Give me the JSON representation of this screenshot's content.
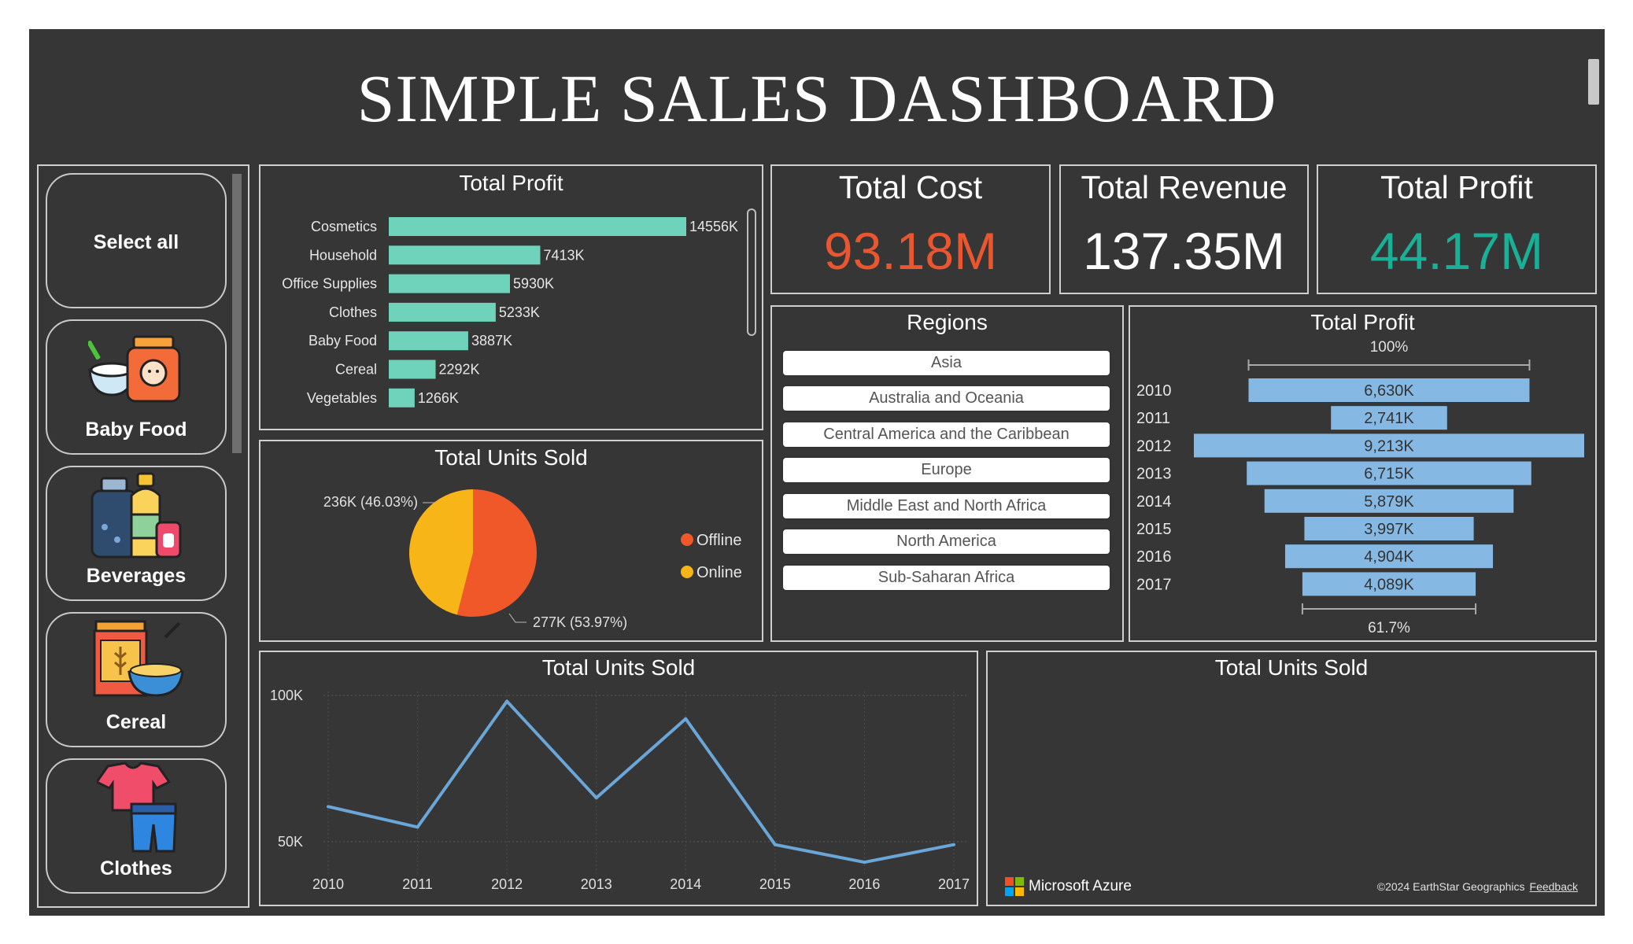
{
  "dashboard": {
    "title": "SIMPLE SALES DASHBOARD"
  },
  "slicer": {
    "items": [
      {
        "label": "Select all",
        "icon": "select-all"
      },
      {
        "label": "Baby Food",
        "icon": "baby-food-icon"
      },
      {
        "label": "Beverages",
        "icon": "beverages-icon"
      },
      {
        "label": "Cereal",
        "icon": "cereal-icon"
      },
      {
        "label": "Clothes",
        "icon": "clothes-icon"
      }
    ]
  },
  "profit_by_item": {
    "title": "Total Profit"
  },
  "units_pie": {
    "title": "Total Units Sold"
  },
  "kpis": {
    "cost": {
      "title": "Total Cost",
      "value": "93.18M",
      "color": "#e8572f"
    },
    "revenue": {
      "title": "Total Revenue",
      "value": "137.35M",
      "color": "#ffffff"
    },
    "profit": {
      "title": "Total Profit",
      "value": "44.17M",
      "color": "#1aaf97"
    }
  },
  "regions": {
    "title": "Regions",
    "items": [
      "Asia",
      "Australia and Oceania",
      "Central America and the Caribbean",
      "Europe",
      "Middle East and North Africa",
      "North America",
      "Sub-Saharan Africa"
    ]
  },
  "profit_funnel": {
    "title": "Total Profit"
  },
  "units_line": {
    "title": "Total Units Sold"
  },
  "units_map": {
    "title": "Total Units Sold",
    "brand": "Microsoft Azure",
    "copyright": "©2024 EarthStar Geographics",
    "feedback": "Feedback"
  },
  "colors": {
    "background": "#363636",
    "bar": "#6fd2bb",
    "funnel": "#85b9e4",
    "line": "#6aa6d8",
    "offline": "#f0582a",
    "online": "#f8b518"
  },
  "chart_data": [
    {
      "type": "bar",
      "orientation": "horizontal",
      "title": "Total Profit",
      "categories": [
        "Cosmetics",
        "Household",
        "Office Supplies",
        "Clothes",
        "Baby Food",
        "Cereal",
        "Vegetables"
      ],
      "values": [
        14556,
        7413,
        5930,
        5233,
        3887,
        2292,
        1266
      ],
      "labels": [
        "14556K",
        "7413K",
        "5930K",
        "5233K",
        "3887K",
        "2292K",
        "1266K"
      ],
      "unit": "K"
    },
    {
      "type": "pie",
      "title": "Total Units Sold",
      "slices": [
        {
          "name": "Offline",
          "value": 277,
          "label": "277K (53.97%)",
          "color": "#f0582a"
        },
        {
          "name": "Online",
          "value": 236,
          "label": "236K (46.03%)",
          "color": "#f8b518"
        }
      ],
      "legend": "right"
    },
    {
      "type": "bar",
      "subtype": "funnel",
      "title": "Total Profit",
      "categories": [
        "2010",
        "2011",
        "2012",
        "2013",
        "2014",
        "2015",
        "2016",
        "2017"
      ],
      "values": [
        6630,
        2741,
        9213,
        6715,
        5879,
        3997,
        4904,
        4089
      ],
      "labels": [
        "6,630K",
        "2,741K",
        "9,213K",
        "6,715K",
        "5,879K",
        "3,997K",
        "4,904K",
        "4,089K"
      ],
      "top_percent": "100%",
      "bottom_percent": "61.7%"
    },
    {
      "type": "line",
      "title": "Total Units Sold",
      "x": [
        "2010",
        "2011",
        "2012",
        "2013",
        "2014",
        "2015",
        "2016",
        "2017"
      ],
      "series": [
        {
          "values": [
            62000,
            55000,
            98000,
            65000,
            92000,
            49000,
            43000,
            49000
          ]
        }
      ],
      "ylim": [
        40000,
        100000
      ],
      "yticks": [
        50000,
        100000
      ],
      "ytick_labels": [
        "50K",
        "100K"
      ],
      "grid": true
    }
  ]
}
